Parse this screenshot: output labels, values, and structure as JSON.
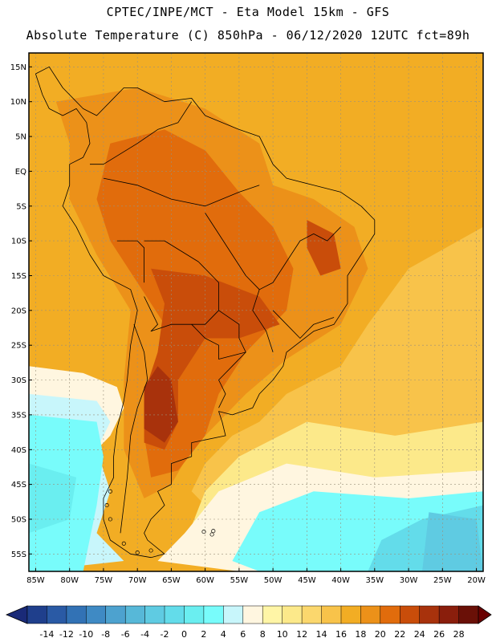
{
  "header": {
    "line1": "CPTEC/INPE/MCT -  Eta Model 15km - GFS",
    "line2": "Absolute Temperature (C) 850hPa - 06/12/2020 12UTC fct=89h"
  },
  "map": {
    "lat_labels": [
      "15N",
      "10N",
      "5N",
      "EQ",
      "5S",
      "10S",
      "15S",
      "20S",
      "25S",
      "30S",
      "35S",
      "40S",
      "45S",
      "50S",
      "55S"
    ],
    "lat_values": [
      15,
      10,
      5,
      0,
      -5,
      -10,
      -15,
      -20,
      -25,
      -30,
      -35,
      -40,
      -45,
      -50,
      -55
    ],
    "lon_labels": [
      "85W",
      "80W",
      "75W",
      "70W",
      "65W",
      "60W",
      "55W",
      "50W",
      "45W",
      "40W",
      "35W",
      "30W",
      "25W",
      "20W"
    ],
    "lon_values": [
      -85,
      -80,
      -75,
      -70,
      -65,
      -60,
      -55,
      -50,
      -45,
      -40,
      -35,
      -30,
      -25,
      -20
    ],
    "lon_range": [
      -86,
      -19
    ],
    "lat_range": [
      -57.5,
      17
    ],
    "colors": {
      "frame": "#000000",
      "grid": "#9a8f7a",
      "coast": "#000000"
    }
  },
  "colorbar": {
    "labels": [
      "-14",
      "-12",
      "-10",
      "-8",
      "-6",
      "-4",
      "-2",
      "0",
      "2",
      "4",
      "6",
      "8",
      "10",
      "12",
      "14",
      "16",
      "18",
      "20",
      "22",
      "24",
      "26",
      "28"
    ],
    "colors": [
      "#1f3f8c",
      "#2a5aa5",
      "#3272b5",
      "#3f8ac4",
      "#4da2cf",
      "#57b8d8",
      "#5fcbe2",
      "#63dcea",
      "#6aeef0",
      "#78fcfb",
      "#c8f6fb",
      "#fff6e0",
      "#fff5a6",
      "#fce98a",
      "#fbd76d",
      "#f8c34a",
      "#f2ad24",
      "#ec9119",
      "#e16c0c",
      "#c94d0a",
      "#a8320c",
      "#8a1e0c",
      "#6a1007"
    ],
    "under_color": "#1a2a78",
    "over_color": "#6a0000"
  }
}
